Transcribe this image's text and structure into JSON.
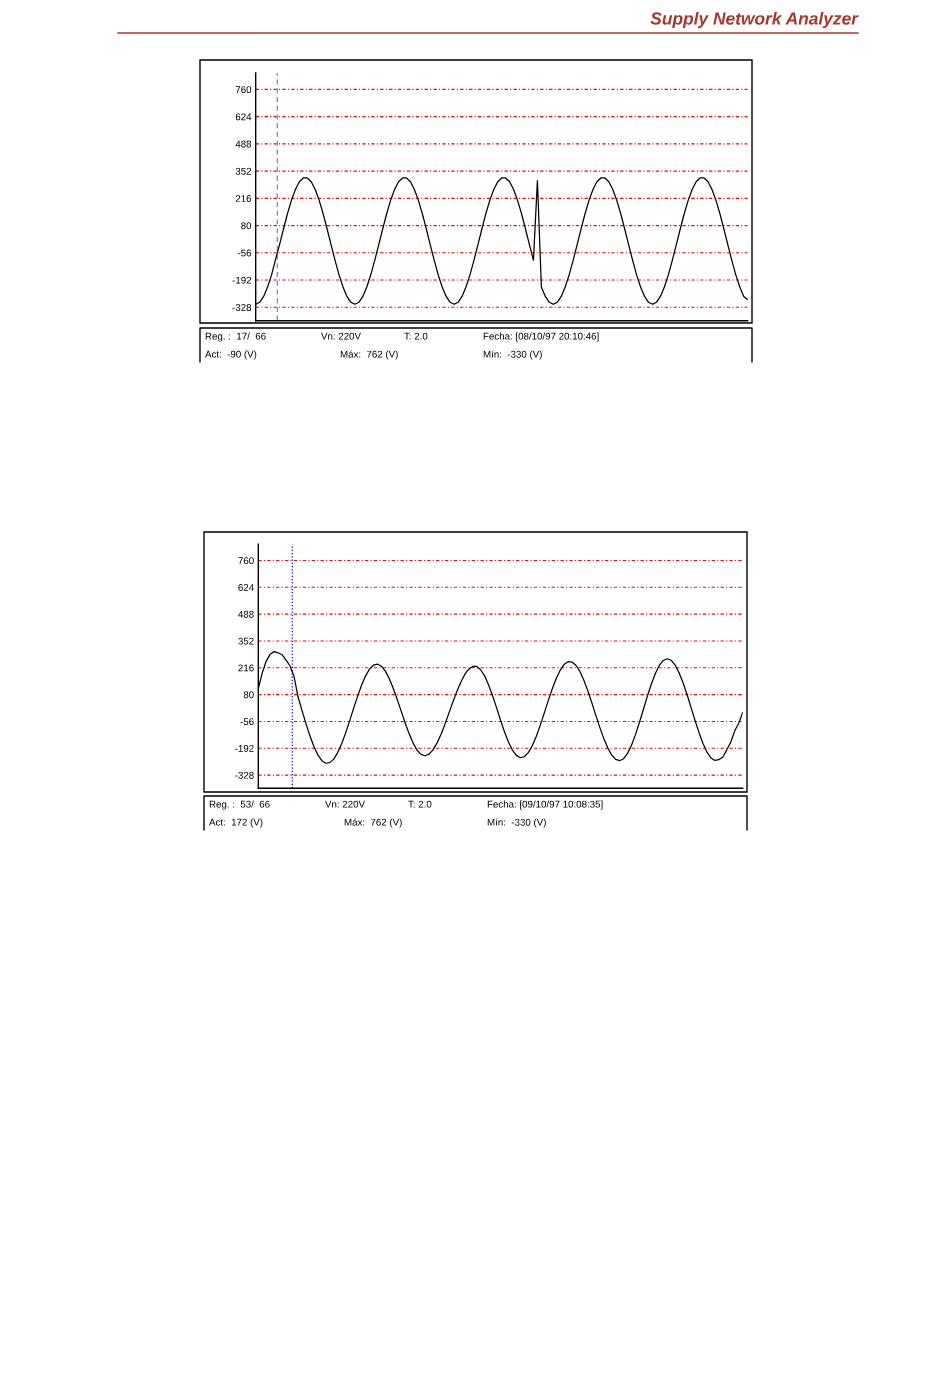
{
  "chart_data": [
    {
      "type": "line",
      "title": "Supply Network Analyzer",
      "categories": [
        null,
        null,
        null,
        null,
        null,
        null,
        null,
        null,
        null,
        null,
        null,
        null,
        null,
        null,
        null,
        null,
        null,
        null,
        null,
        null,
        null,
        null,
        null,
        null,
        null,
        null,
        null,
        null,
        null,
        null,
        null,
        null,
        null,
        null,
        null,
        null,
        null,
        null,
        null,
        null,
        null,
        null,
        null,
        null,
        null,
        null,
        null,
        null,
        null,
        null,
        null,
        null,
        null,
        null,
        null,
        null,
        null,
        null,
        null,
        null,
        null,
        null,
        null,
        null,
        null,
        null,
        null,
        null,
        null,
        null,
        null,
        null,
        null,
        null,
        null,
        null,
        null,
        null,
        null,
        null,
        null,
        null,
        null,
        null,
        null,
        null,
        null,
        null,
        null,
        null,
        null,
        null,
        null,
        null,
        null,
        null,
        null,
        null,
        null,
        null,
        null,
        null,
        null,
        null,
        null,
        null,
        null,
        null,
        null,
        null,
        null,
        null,
        null,
        null,
        null,
        null,
        null,
        null,
        null,
        null,
        null,
        null,
        null,
        null,
        null
      ],
      "series": [
        {
          "color": "#000000",
          "values": [
            -313,
            -303,
            -274,
            -227,
            -166,
            -90,
            -16,
            63,
            139,
            206,
            260,
            299,
            318,
            318,
            299,
            260,
            206,
            139,
            63,
            -16,
            -94,
            -166,
            -227,
            -274,
            -303,
            -313,
            -303,
            -274,
            -227,
            -166,
            -94,
            -16,
            63,
            139,
            206,
            260,
            299,
            318,
            318,
            299,
            260,
            206,
            139,
            63,
            -16,
            -94,
            -166,
            -227,
            -274,
            -303,
            -313,
            -303,
            -274,
            -227,
            -166,
            -94,
            -16,
            63,
            139,
            206,
            260,
            299,
            318,
            318,
            299,
            260,
            206,
            139,
            63,
            -16,
            -94,
            305,
            -227,
            -274,
            -303,
            -313,
            -303,
            -274,
            -227,
            -166,
            -94,
            -16,
            63,
            139,
            206,
            260,
            299,
            318,
            318,
            299,
            260,
            206,
            139,
            63,
            -16,
            -94,
            -166,
            -227,
            -274,
            -303,
            -313,
            -303,
            -274,
            -227,
            -166,
            -94,
            -16,
            63,
            139,
            206,
            260,
            299,
            318,
            318,
            299,
            260,
            206,
            139,
            63,
            -16,
            -94,
            -166,
            -227,
            -274,
            -290
          ]
        }
      ],
      "ylim": [
        -395,
        842
      ],
      "yticks": [
        -328,
        -192,
        -56,
        80,
        216,
        352,
        488,
        624,
        760
      ],
      "grid": "y",
      "tick_labels": "y",
      "annotations": [
        "Reg. :  17/  66",
        "Vn: 220V",
        "T: 2.0",
        "Fecha: [08/10/97 20:10:46]",
        "Act:  -90 (V)",
        "Máx:  762 (V)",
        "Mín:  -330 (V)"
      ]
    },
    {
      "type": "line",
      "categories": [
        null,
        null,
        null,
        null,
        null,
        null,
        null,
        null,
        null,
        null,
        null,
        null,
        null,
        null,
        null,
        null,
        null,
        null,
        null,
        null,
        null,
        null,
        null,
        null,
        null,
        null,
        null,
        null,
        null,
        null,
        null,
        null,
        null,
        null,
        null,
        null,
        null,
        null,
        null,
        null,
        null,
        null,
        null,
        null,
        null,
        null,
        null,
        null,
        null,
        null,
        null,
        null,
        null,
        null,
        null,
        null,
        null,
        null,
        null,
        null,
        null,
        null,
        null,
        null,
        null,
        null,
        null,
        null,
        null,
        null,
        null,
        null,
        null,
        null,
        null,
        null,
        null,
        null,
        null,
        null,
        null,
        null,
        null,
        null,
        null,
        null,
        null,
        null,
        null,
        null,
        null,
        null,
        null,
        null,
        null,
        null,
        null,
        null,
        null,
        null,
        null,
        null,
        null,
        null,
        null,
        null,
        null,
        null,
        null,
        null,
        null,
        null,
        null,
        null,
        null,
        null,
        null,
        null,
        null,
        null,
        null,
        null,
        null
      ],
      "series": [
        {
          "color": "#000000",
          "values": [
            110,
            190,
            250,
            285,
            298,
            292,
            282,
            255,
            225,
            172,
            69,
            0,
            -67,
            -129,
            -183,
            -226,
            -255,
            -268,
            -265,
            -247,
            -214,
            -169,
            -114,
            -53,
            10,
            71,
            127,
            174,
            209,
            229,
            235,
            224,
            199,
            160,
            111,
            55,
            -5,
            -64,
            -119,
            -166,
            -202,
            -223,
            -230,
            -222,
            -200,
            -166,
            -122,
            -71,
            -14,
            42,
            96,
            143,
            182,
            209,
            223,
            223,
            206,
            175,
            129,
            74,
            14,
            -49,
            -108,
            -160,
            -201,
            -228,
            -240,
            -235,
            -214,
            -179,
            -132,
            -76,
            -15,
            48,
            107,
            160,
            202,
            232,
            247,
            245,
            229,
            197,
            153,
            99,
            39,
            -24,
            -86,
            -142,
            -190,
            -226,
            -248,
            -255,
            -245,
            -218,
            -177,
            -123,
            -60,
            6,
            73,
            134,
            187,
            228,
            253,
            262,
            254,
            229,
            190,
            139,
            79,
            14,
            -51,
            -113,
            -168,
            -211,
            -241,
            -254,
            -250,
            -236,
            -200,
            -160,
            -103,
            -65,
            -10
          ]
        }
      ],
      "ylim": [
        -395,
        842
      ],
      "yticks": [
        -328,
        -192,
        -56,
        80,
        216,
        352,
        488,
        624,
        760
      ],
      "grid": "y",
      "tick_labels": "y",
      "annotations": [
        "Reg. :  53/  66",
        "Vn: 220V",
        "T: 2.0",
        "Fecha: [09/10/97 10:08:35]",
        "Act:  172 (V)",
        "Máx:  762 (V)",
        "Mín:  -330 (V)"
      ]
    }
  ]
}
